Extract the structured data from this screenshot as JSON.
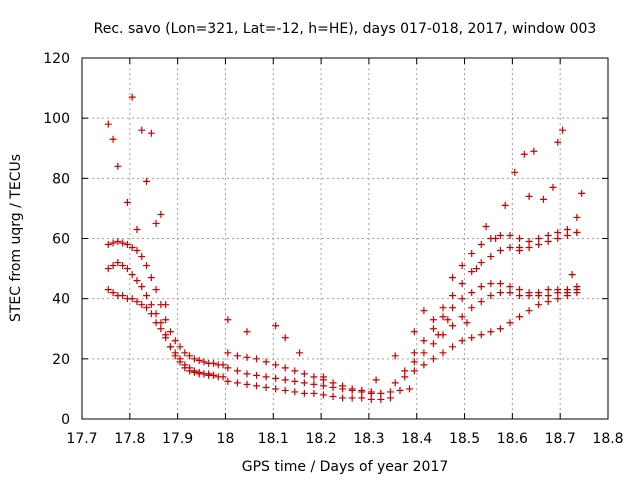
{
  "chart_data": {
    "type": "scatter",
    "title": "Rec. savo (Lon=321, Lat=-12, h=HE), days 017-018, 2017, window 003",
    "xlabel": "GPS time / Days of year 2017",
    "ylabel": "STEC from uqrg / TECUs",
    "xlim": [
      17.7,
      18.8
    ],
    "ylim": [
      0,
      120
    ],
    "xticks": [
      "17.7",
      "17.8",
      "17.9",
      "18",
      "18.1",
      "18.2",
      "18.3",
      "18.4",
      "18.5",
      "18.6",
      "18.7",
      "18.8"
    ],
    "yticks": [
      "0",
      "20",
      "40",
      "60",
      "80",
      "100",
      "120"
    ],
    "grid": true,
    "legend": "none",
    "marker": "plus",
    "marker_color": "#cc0000",
    "series": [
      {
        "x": [
          17.755,
          17.765,
          17.775,
          17.785,
          17.795,
          17.805,
          17.815,
          17.825,
          17.835,
          17.845,
          17.855,
          17.865,
          17.875,
          17.885,
          17.895,
          17.905,
          17.915,
          17.925,
          17.935,
          17.945,
          17.955,
          17.965,
          17.975,
          17.985,
          17.995
        ],
        "y": [
          58,
          58.5,
          59,
          58.5,
          58,
          57,
          56,
          54,
          51,
          47,
          43,
          38,
          33,
          29,
          26,
          24,
          22,
          21,
          20,
          19.5,
          19,
          18.5,
          18.5,
          18,
          18
        ]
      },
      {
        "x": [
          17.755,
          17.765,
          17.775,
          17.785,
          17.795,
          17.805,
          17.815,
          17.825,
          17.835,
          17.845,
          17.855,
          17.865,
          17.875,
          17.885,
          17.895,
          17.905,
          17.915,
          17.925,
          17.935,
          17.945,
          17.955,
          17.965,
          17.975,
          17.985,
          17.995
        ],
        "y": [
          50,
          51,
          52,
          51,
          50,
          48,
          46,
          44,
          41,
          38,
          35,
          32,
          28,
          24,
          21,
          19,
          17,
          16,
          15.5,
          15,
          15,
          14.5,
          14.5,
          14,
          14
        ]
      },
      {
        "x": [
          17.755,
          17.765,
          17.775,
          17.785,
          17.795,
          17.805,
          17.815,
          17.825,
          17.835,
          17.845,
          17.855,
          17.865,
          17.875,
          17.885,
          17.895,
          17.905,
          17.915,
          17.925,
          17.935,
          17.945,
          17.955,
          17.965,
          17.975
        ],
        "y": [
          43,
          42,
          41,
          41,
          40,
          40,
          39,
          38,
          37,
          35,
          32,
          30,
          27,
          24,
          22,
          20,
          18,
          17,
          16,
          15.5,
          15,
          15,
          14.5
        ]
      },
      {
        "x": [
          18.005,
          18.025,
          18.045,
          18.065,
          18.085,
          18.105,
          18.125,
          18.145,
          18.165,
          18.185,
          18.205,
          18.225,
          18.245,
          18.265,
          18.285,
          18.305,
          18.325,
          18.345,
          18.365,
          18.385
        ],
        "y": [
          17,
          16,
          15,
          14.5,
          14,
          13.5,
          13,
          12.5,
          12,
          11.5,
          11,
          10.5,
          10,
          9.5,
          9,
          8.5,
          8.5,
          9,
          9.5,
          10
        ]
      },
      {
        "x": [
          18.005,
          18.025,
          18.045,
          18.065,
          18.085,
          18.105,
          18.125,
          18.145,
          18.165,
          18.185,
          18.205,
          18.225,
          18.245,
          18.265,
          18.285,
          18.305,
          18.325,
          18.345
        ],
        "y": [
          12.5,
          12,
          11.5,
          11,
          10.5,
          10,
          9.5,
          9,
          8.5,
          8.5,
          8,
          7.5,
          7,
          7,
          7,
          6.5,
          6.5,
          7
        ]
      },
      {
        "x": [
          18.005,
          18.025,
          18.045,
          18.065,
          18.085,
          18.105,
          18.125,
          18.145,
          18.165,
          18.185,
          18.205,
          18.225,
          18.245,
          18.265,
          18.285,
          18.305,
          18.325
        ],
        "y": [
          22,
          21,
          20.5,
          20,
          19,
          18,
          17,
          16,
          15,
          14,
          13,
          12,
          11,
          10,
          9.5,
          9,
          8.5
        ]
      },
      {
        "x": [
          18.355,
          18.375,
          18.395,
          18.415,
          18.435,
          18.455,
          18.475,
          18.495,
          18.515,
          18.535,
          18.555,
          18.575,
          18.595,
          18.615,
          18.635,
          18.655,
          18.675,
          18.695,
          18.715,
          18.735
        ],
        "y": [
          12,
          14,
          16,
          18,
          20,
          22,
          24,
          26,
          27,
          28,
          29,
          30,
          32,
          34,
          36,
          38,
          39,
          40,
          41,
          42
        ]
      },
      {
        "x": [
          18.375,
          18.395,
          18.415,
          18.435,
          18.455,
          18.475,
          18.495,
          18.515,
          18.535,
          18.555,
          18.575,
          18.595,
          18.615,
          18.635,
          18.655,
          18.675,
          18.695,
          18.715,
          18.735
        ],
        "y": [
          16,
          19,
          22,
          25,
          28,
          31,
          34,
          37,
          39,
          41,
          42,
          42,
          41,
          41,
          42,
          43,
          43,
          43,
          44
        ]
      },
      {
        "x": [
          18.395,
          18.415,
          18.435,
          18.455,
          18.475,
          18.495,
          18.515,
          18.535,
          18.555,
          18.575,
          18.595,
          18.615,
          18.635,
          18.655,
          18.675,
          18.695,
          18.715,
          18.735
        ],
        "y": [
          22,
          26,
          30,
          34,
          37,
          40,
          42,
          44,
          45,
          45,
          44,
          43,
          42,
          41,
          41,
          42,
          42,
          43
        ]
      },
      {
        "x": [
          18.435,
          18.455,
          18.475,
          18.495,
          18.515,
          18.535,
          18.555,
          18.575,
          18.595,
          18.615,
          18.635,
          18.655,
          18.675,
          18.695,
          18.715,
          18.735
        ],
        "y": [
          33,
          37,
          41,
          45,
          49,
          52,
          54,
          56,
          57,
          57,
          57,
          58,
          59,
          60,
          61,
          62
        ]
      },
      {
        "x": [
          18.475,
          18.495,
          18.515,
          18.535,
          18.555,
          18.575,
          18.595,
          18.615,
          18.635,
          18.655,
          18.675,
          18.695,
          18.715,
          18.735
        ],
        "y": [
          47,
          51,
          55,
          58,
          60,
          61,
          61,
          60,
          59,
          60,
          61,
          62,
          63,
          62
        ]
      },
      {
        "x": [
          17.755,
          17.765,
          17.775,
          17.795,
          17.805,
          17.815,
          17.825,
          17.835,
          17.845,
          17.855,
          17.865,
          17.875,
          18.005,
          18.045,
          18.105,
          18.125,
          18.155,
          18.205,
          18.315,
          18.355,
          18.395,
          18.415,
          18.445,
          18.465,
          18.505,
          18.525,
          18.545,
          18.565,
          18.585,
          18.605,
          18.615,
          18.625,
          18.635,
          18.645,
          18.665,
          18.685,
          18.695,
          18.705,
          18.725,
          18.735,
          18.745
        ],
        "y": [
          98,
          93,
          84,
          72,
          107,
          63,
          96,
          79,
          95,
          65,
          68,
          38,
          33,
          29,
          31,
          27,
          22,
          14,
          13,
          21,
          29,
          36,
          28,
          33,
          32,
          50,
          64,
          60,
          71,
          82,
          56,
          88,
          74,
          89,
          73,
          77,
          92,
          96,
          48,
          67,
          75
        ]
      }
    ]
  }
}
